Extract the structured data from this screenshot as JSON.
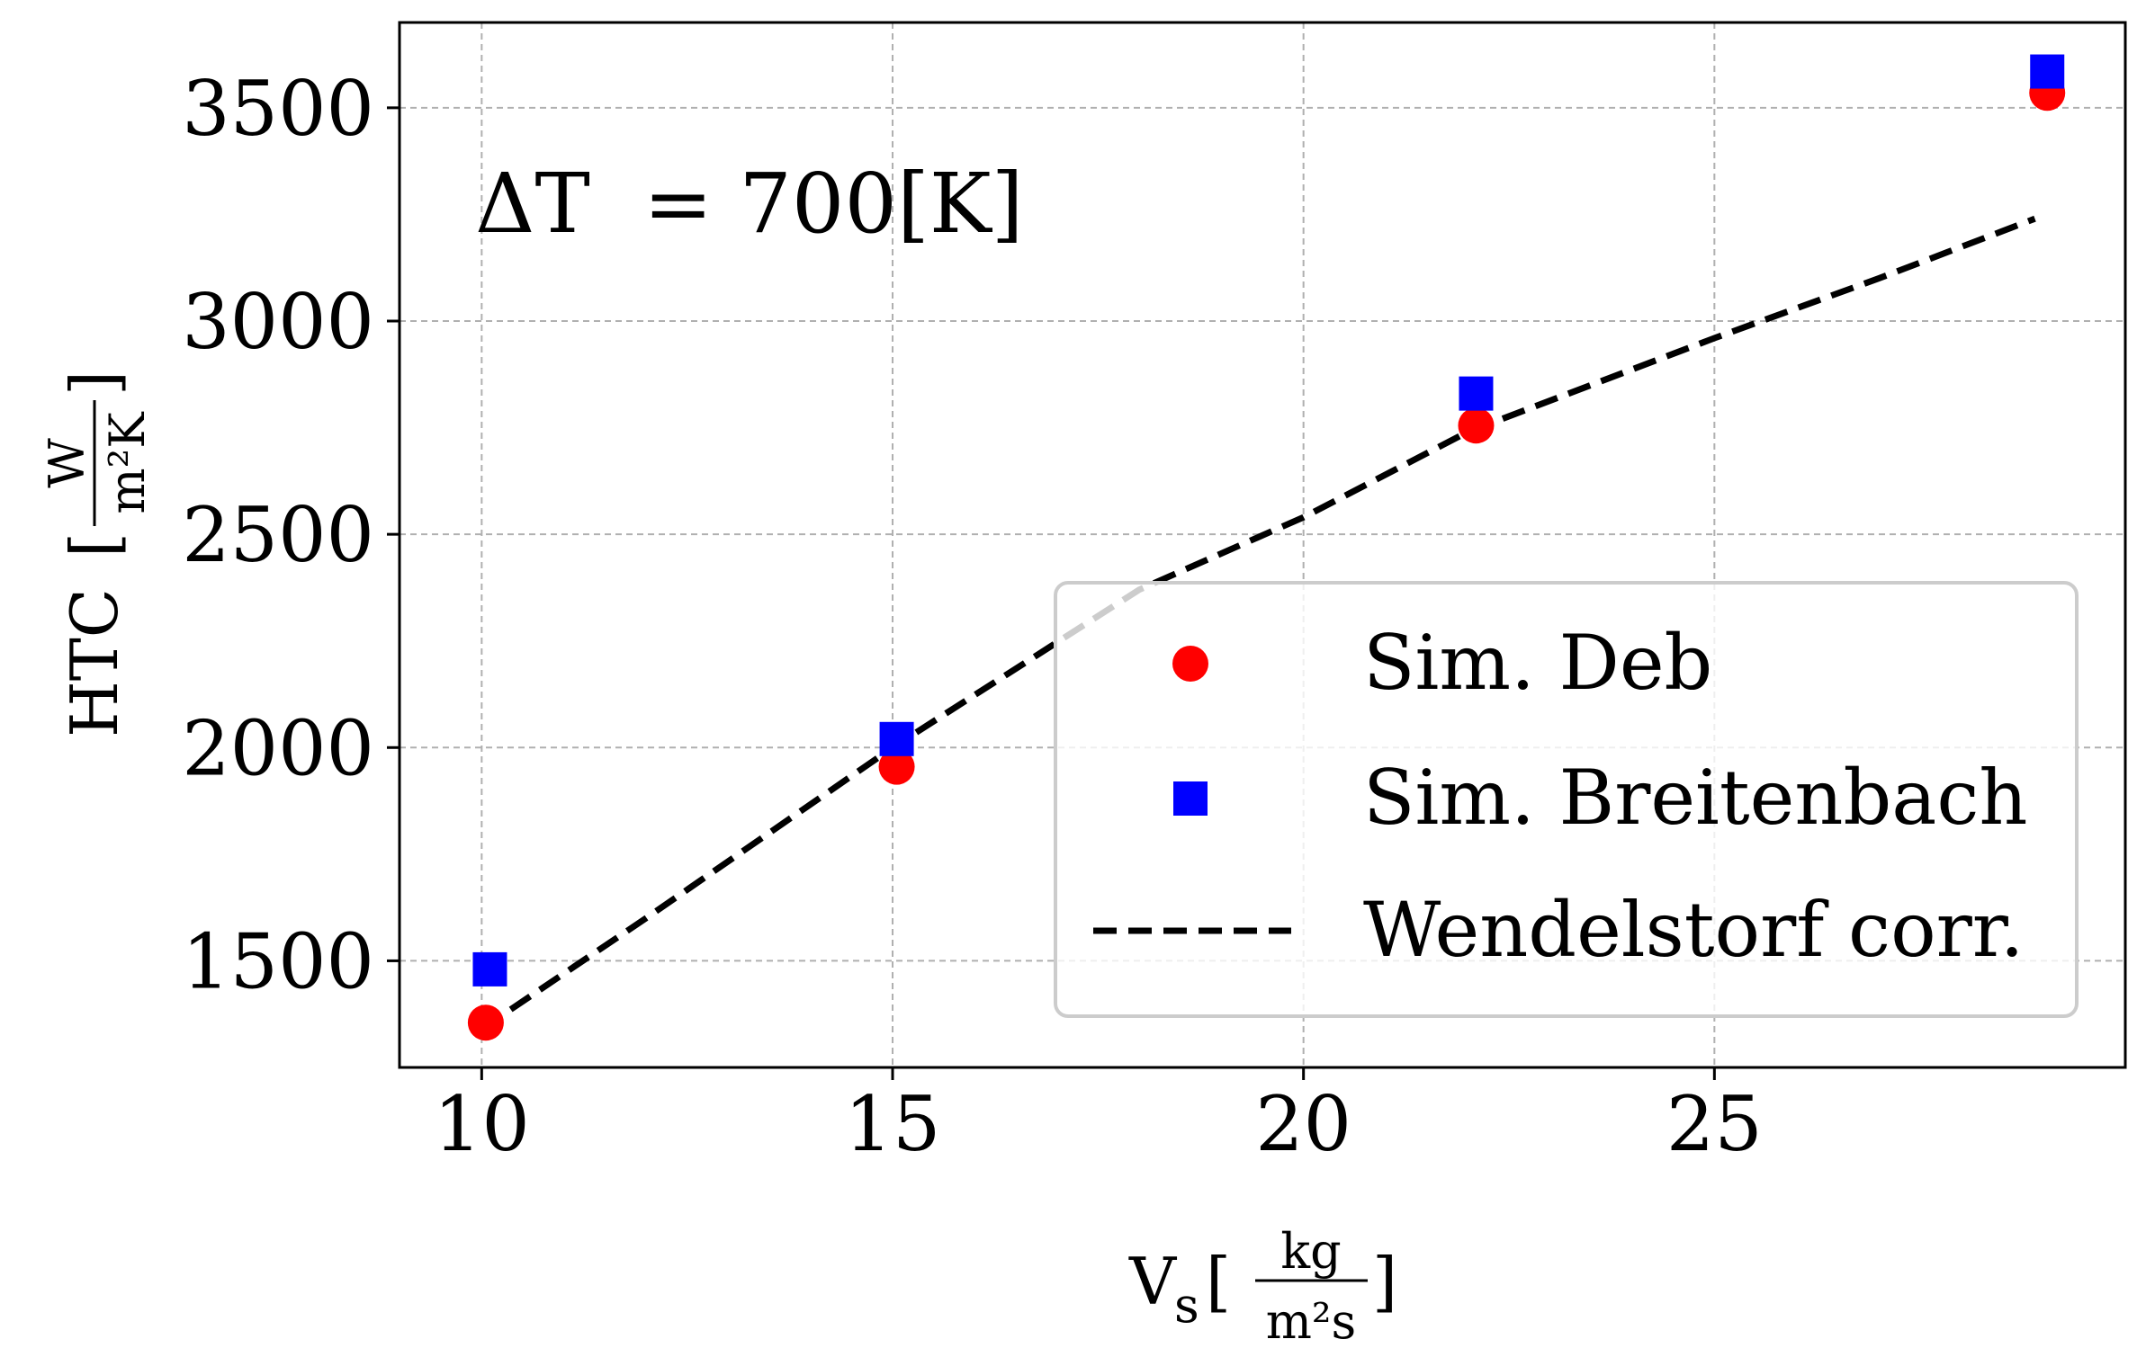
{
  "chart_data": {
    "type": "scatter",
    "xlim": [
      9.0,
      30.0
    ],
    "ylim": [
      1250,
      3700
    ],
    "x_ticks": [
      10,
      15,
      20,
      25
    ],
    "y_ticks": [
      1500,
      2000,
      2500,
      3000,
      3500
    ],
    "grid": true,
    "legend_position": "lower-right",
    "annotation": {
      "delta": "ΔT",
      "rest": "= 700[K]"
    },
    "xlabel": {
      "base": "V",
      "sub": "s",
      "num": "kg",
      "den": "m²s"
    },
    "ylabel": {
      "base": "HTC",
      "num": "W",
      "den": "m²K"
    },
    "series": [
      {
        "name": "Sim. Deb",
        "marker": "circle",
        "color": "#ff0000",
        "points": [
          [
            10.05,
            1355
          ],
          [
            15.05,
            1955
          ],
          [
            22.1,
            2755
          ],
          [
            29.05,
            3535
          ]
        ]
      },
      {
        "name": "Sim. Breitenbach",
        "marker": "square",
        "color": "#0000ff",
        "points": [
          [
            10.1,
            1480
          ],
          [
            15.05,
            2020
          ],
          [
            22.1,
            2830
          ],
          [
            29.05,
            3585
          ]
        ]
      },
      {
        "name": "Wendelstorf corr.",
        "marker": "dashed-line",
        "color": "#000000",
        "points": [
          [
            10.0,
            1340
          ],
          [
            12.0,
            1600
          ],
          [
            15.0,
            2000
          ],
          [
            18.0,
            2370
          ],
          [
            20.0,
            2540
          ],
          [
            22.0,
            2740
          ],
          [
            25.0,
            2960
          ],
          [
            27.0,
            3100
          ],
          [
            28.9,
            3240
          ]
        ]
      }
    ]
  }
}
